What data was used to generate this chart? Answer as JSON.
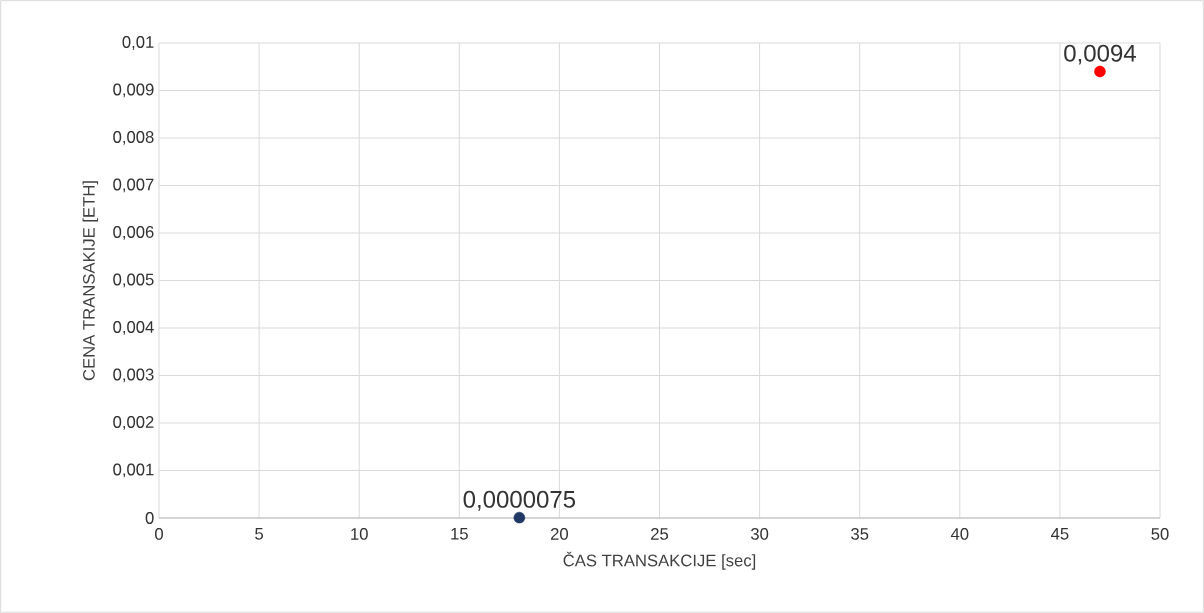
{
  "chart_data": {
    "type": "scatter",
    "xlabel": "ČAS TRANSAKCIJE [sec]",
    "ylabel": "CENA TRANSAKIJE [ETH]",
    "series": [
      {
        "x": [
          18
        ],
        "values": [
          7.5e-06
        ],
        "color": "#203864",
        "value_labels": [
          "0,0000075"
        ]
      },
      {
        "x": [
          47
        ],
        "values": [
          0.0094
        ],
        "color": "#ff0000",
        "value_labels": [
          "0,0094"
        ]
      }
    ],
    "xlim": [
      0,
      50
    ],
    "xticks": [
      0,
      5,
      10,
      15,
      20,
      25,
      30,
      35,
      40,
      45,
      50
    ],
    "ylim": [
      0,
      0.01
    ],
    "yticks": [
      {
        "value": 0,
        "label": "0"
      },
      {
        "value": 0.001,
        "label": "0,001"
      },
      {
        "value": 0.002,
        "label": "0,002"
      },
      {
        "value": 0.003,
        "label": "0,003"
      },
      {
        "value": 0.004,
        "label": "0,004"
      },
      {
        "value": 0.005,
        "label": "0,005"
      },
      {
        "value": 0.006,
        "label": "0,006"
      },
      {
        "value": 0.007,
        "label": "0,007"
      },
      {
        "value": 0.008,
        "label": "0,008"
      },
      {
        "value": 0.009,
        "label": "0,009"
      },
      {
        "value": 0.01,
        "label": "0,01"
      }
    ],
    "grid": true,
    "marker": "circle"
  }
}
